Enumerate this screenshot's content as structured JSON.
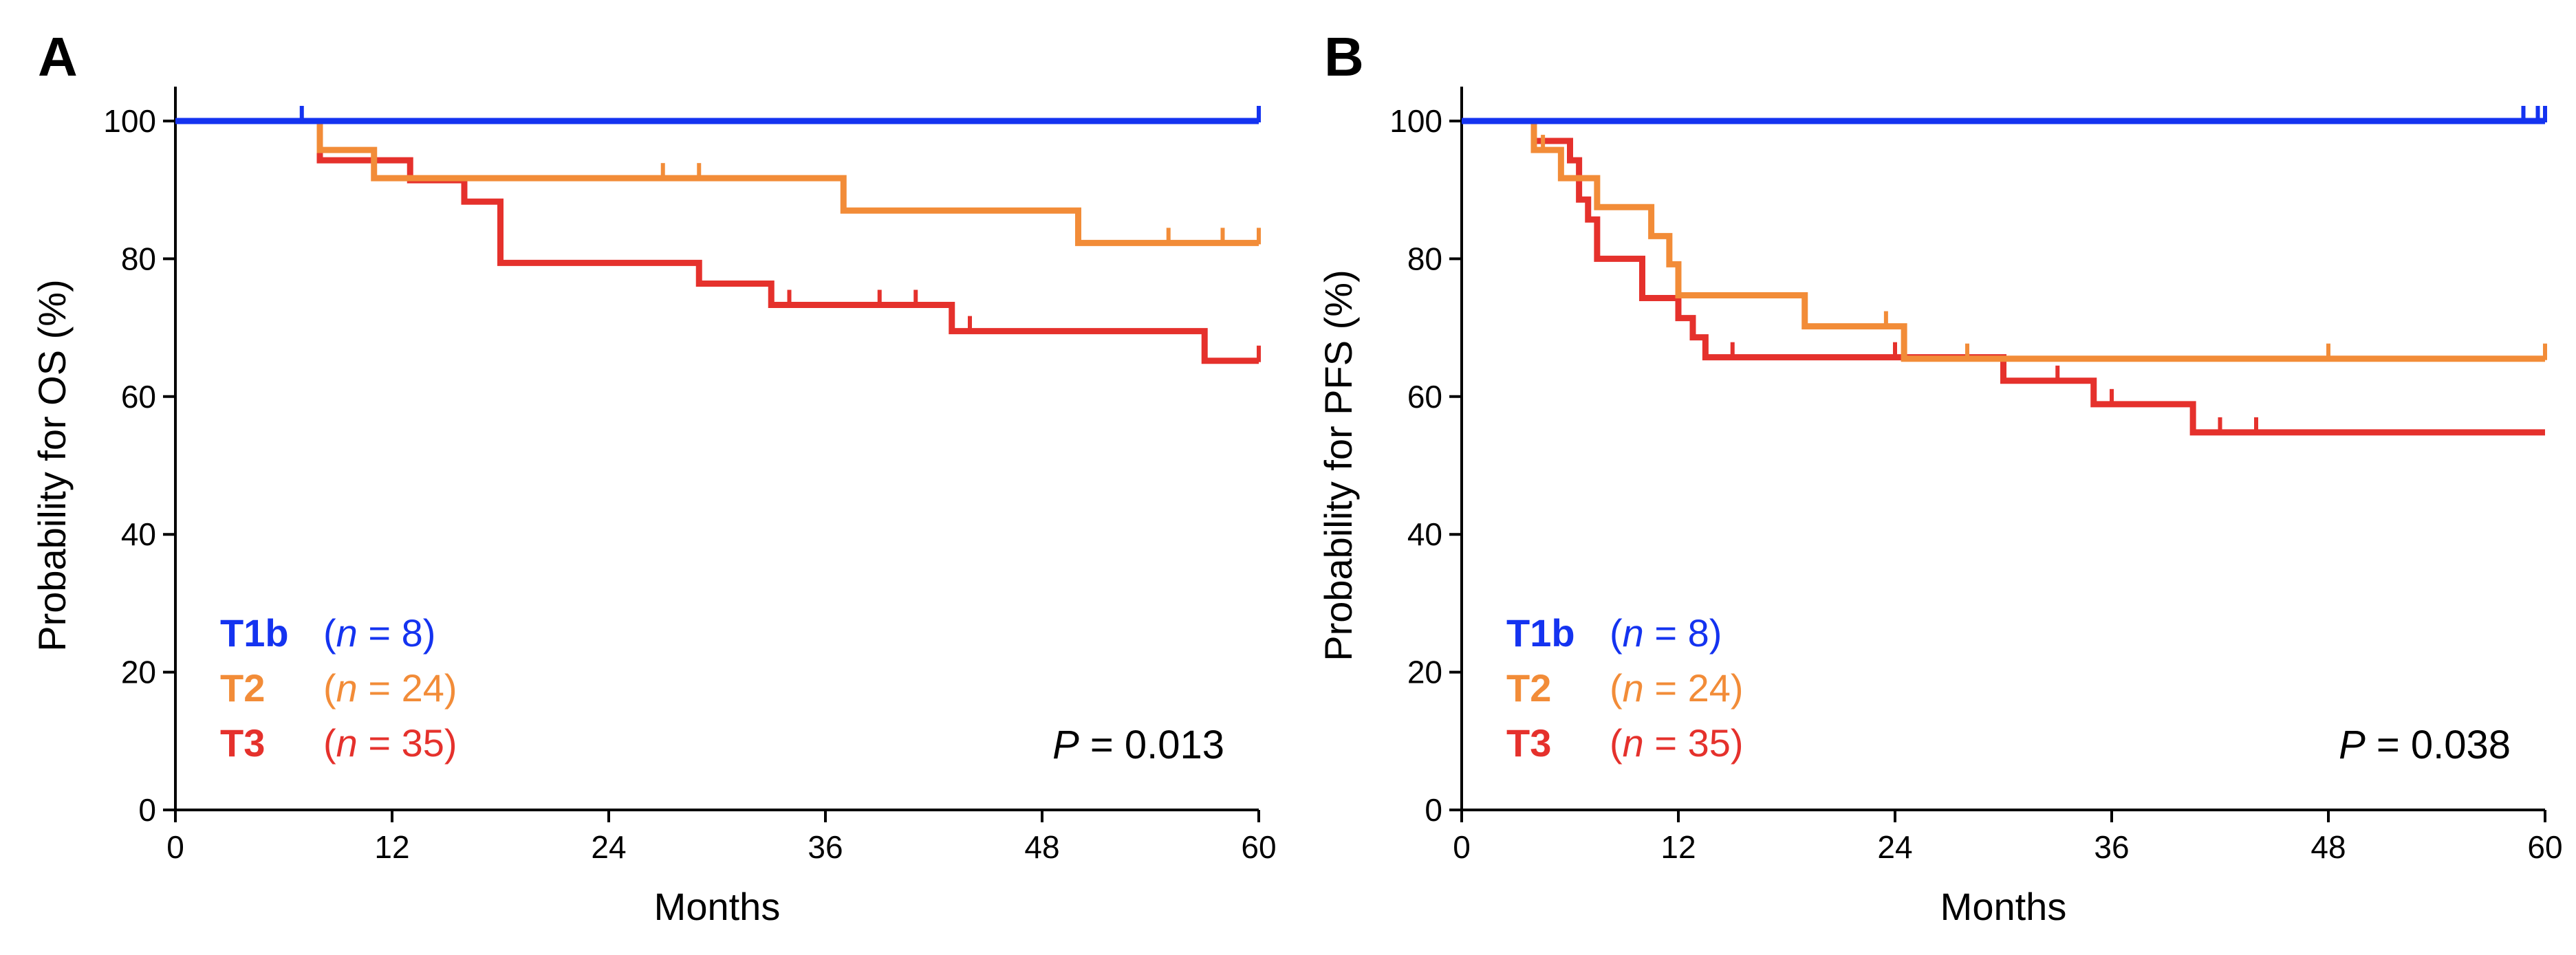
{
  "colors": {
    "T1b": "#1433f0",
    "T2": "#f28c38",
    "T3": "#e5312c",
    "axis": "#000000"
  },
  "chart_data": [
    {
      "type": "line",
      "subtype": "kaplan-meier",
      "panel_label": "A",
      "title": "",
      "xlabel": "Months",
      "ylabel": "Probability for OS (%)",
      "xlim": [
        0,
        60
      ],
      "ylim": [
        0,
        100
      ],
      "xticks": [
        "0",
        "12",
        "24",
        "36",
        "48",
        "60"
      ],
      "yticks": [
        "0",
        "20",
        "40",
        "60",
        "80",
        "100"
      ],
      "grid": false,
      "legend_position": "bottom-left",
      "p_value_label": "P",
      "p_value_text": "= 0.013",
      "series": [
        {
          "name": "T1b",
          "n_text": "(n = 8)",
          "color_key": "T1b",
          "steps": [
            [
              0,
              100
            ],
            [
              60,
              100
            ]
          ],
          "censored": [
            [
              7,
              100
            ],
            [
              60,
              100
            ]
          ]
        },
        {
          "name": "T2",
          "n_text": "(n = 24)",
          "color_key": "T2",
          "steps": [
            [
              0,
              100
            ],
            [
              8,
              95.8
            ],
            [
              11,
              91.7
            ],
            [
              37,
              87.0
            ],
            [
              50,
              82.3
            ],
            [
              60,
              82.3
            ]
          ],
          "censored": [
            [
              27,
              91.7
            ],
            [
              29,
              91.7
            ],
            [
              55,
              82.3
            ],
            [
              58,
              82.3
            ],
            [
              60,
              82.3
            ]
          ]
        },
        {
          "name": "T3",
          "n_text": "(n = 35)",
          "color_key": "T3",
          "steps": [
            [
              0,
              100
            ],
            [
              8,
              94.3
            ],
            [
              13,
              91.4
            ],
            [
              16,
              88.3
            ],
            [
              18,
              79.4
            ],
            [
              29,
              76.4
            ],
            [
              33,
              73.3
            ],
            [
              43,
              69.5
            ],
            [
              57,
              65.2
            ],
            [
              60,
              65.2
            ]
          ],
          "censored": [
            [
              34,
              73.3
            ],
            [
              39,
              73.3
            ],
            [
              41,
              73.3
            ],
            [
              44,
              69.5
            ],
            [
              60,
              65.2
            ]
          ]
        }
      ]
    },
    {
      "type": "line",
      "subtype": "kaplan-meier",
      "panel_label": "B",
      "title": "",
      "xlabel": "Months",
      "ylabel": "Probability for PFS (%)",
      "xlim": [
        0,
        60
      ],
      "ylim": [
        0,
        100
      ],
      "xticks": [
        "0",
        "12",
        "24",
        "36",
        "48",
        "60"
      ],
      "yticks": [
        "0",
        "20",
        "40",
        "60",
        "80",
        "100"
      ],
      "grid": false,
      "legend_position": "bottom-left",
      "p_value_label": "P",
      "p_value_text": "= 0.038",
      "series": [
        {
          "name": "T1b",
          "n_text": "(n = 8)",
          "color_key": "T1b",
          "steps": [
            [
              0,
              100
            ],
            [
              60,
              100
            ]
          ],
          "censored": [
            [
              58.8,
              100
            ],
            [
              59.6,
              100
            ],
            [
              60,
              100
            ]
          ]
        },
        {
          "name": "T2",
          "n_text": "(n = 24)",
          "color_key": "T2",
          "steps": [
            [
              0,
              100
            ],
            [
              4,
              95.8
            ],
            [
              5.5,
              91.7
            ],
            [
              7.5,
              87.5
            ],
            [
              10.5,
              83.3
            ],
            [
              11.5,
              79.2
            ],
            [
              12,
              74.7
            ],
            [
              19,
              70.2
            ],
            [
              24.5,
              65.5
            ],
            [
              60,
              65.5
            ]
          ],
          "censored": [
            [
              4.5,
              95.8
            ],
            [
              23.5,
              70.2
            ],
            [
              28,
              65.5
            ],
            [
              48,
              65.5
            ],
            [
              60,
              65.5
            ]
          ]
        },
        {
          "name": "T3",
          "n_text": "(n = 35)",
          "color_key": "T3",
          "steps": [
            [
              0,
              100
            ],
            [
              4,
              97.1
            ],
            [
              6,
              94.3
            ],
            [
              6.5,
              88.6
            ],
            [
              7,
              85.7
            ],
            [
              7.5,
              80.0
            ],
            [
              10,
              74.3
            ],
            [
              12,
              71.4
            ],
            [
              12.8,
              68.6
            ],
            [
              13.5,
              65.7
            ],
            [
              30,
              62.3
            ],
            [
              35,
              58.9
            ],
            [
              40.5,
              54.8
            ],
            [
              60,
              54.8
            ]
          ],
          "censored": [
            [
              15,
              65.7
            ],
            [
              24,
              65.7
            ],
            [
              33,
              62.3
            ],
            [
              36,
              58.9
            ],
            [
              42,
              54.8
            ],
            [
              44,
              54.8
            ]
          ]
        }
      ]
    }
  ]
}
